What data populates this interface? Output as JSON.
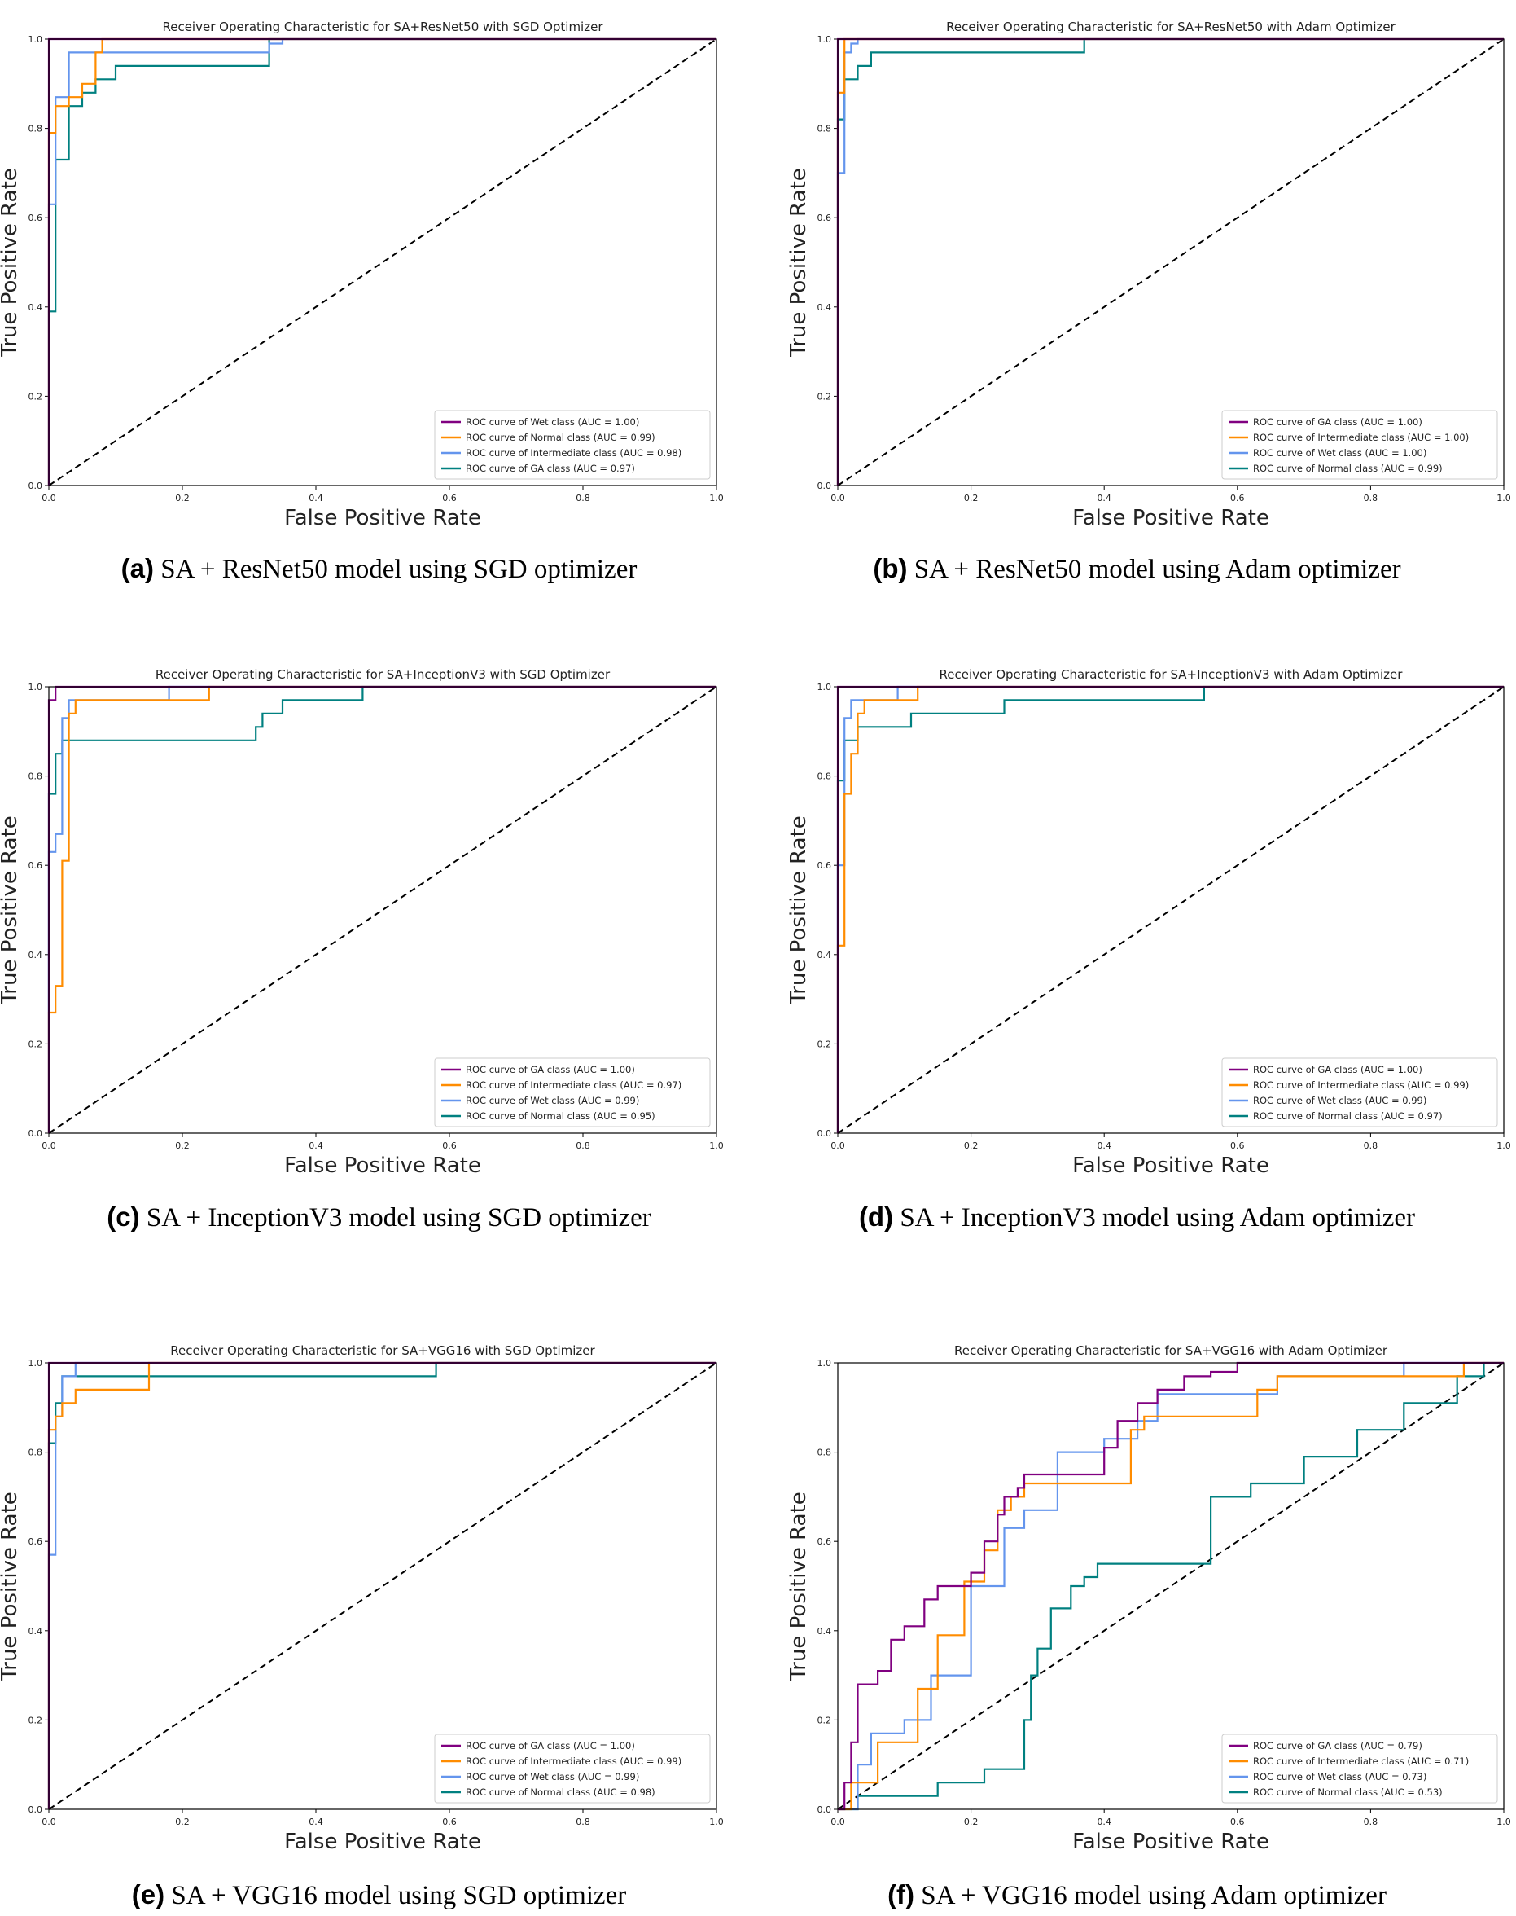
{
  "colors": {
    "GA": "#800080",
    "Wet": "#800080",
    "Normal": "#ff8c00",
    "Intermediate": "#6495ed",
    "GA_teal": "#008080",
    "orange": "#ff8c00",
    "purple": "#800080",
    "blue": "#6495ed",
    "teal": "#008080",
    "diagonal": "#000000"
  },
  "chart_data": [
    {
      "type": "line",
      "title": "Receiver Operating Characteristic for SA+ResNet50 with SGD Optimizer",
      "xlabel": "False Positive Rate",
      "ylabel": "True Positive Rate",
      "xlim": [
        0,
        1
      ],
      "ylim": [
        0,
        1
      ],
      "xticks": [
        "0.0",
        "0.2",
        "0.4",
        "0.6",
        "0.8",
        "1.0"
      ],
      "yticks": [
        "0.0",
        "0.2",
        "0.4",
        "0.6",
        "0.8",
        "1.0"
      ],
      "legend_position": "lower-right",
      "caption_letter": "(a)",
      "caption_text": "SA + ResNet50 model using SGD optimizer",
      "series": [
        {
          "name": "ROC curve of Wet class (AUC = 1.00)",
          "color": "#800080",
          "x": [
            0,
            0,
            1
          ],
          "y": [
            0,
            1,
            1
          ]
        },
        {
          "name": "ROC curve of Normal class (AUC = 0.99)",
          "color": "#ff8c00",
          "x": [
            0,
            0,
            0.01,
            0.01,
            0.03,
            0.03,
            0.05,
            0.05,
            0.07,
            0.07,
            0.08,
            0.08,
            1
          ],
          "y": [
            0,
            0.79,
            0.79,
            0.85,
            0.85,
            0.87,
            0.87,
            0.9,
            0.9,
            0.97,
            0.97,
            1,
            1
          ]
        },
        {
          "name": "ROC curve of Intermediate class (AUC = 0.98)",
          "color": "#6495ed",
          "x": [
            0,
            0,
            0.01,
            0.01,
            0.03,
            0.03,
            0.33,
            0.33,
            0.35,
            0.35,
            1
          ],
          "y": [
            0,
            0.63,
            0.63,
            0.87,
            0.87,
            0.97,
            0.97,
            0.99,
            0.99,
            1,
            1
          ]
        },
        {
          "name": "ROC curve of GA class (AUC = 0.97)",
          "color": "#008080",
          "x": [
            0,
            0,
            0.01,
            0.01,
            0.03,
            0.03,
            0.05,
            0.05,
            0.07,
            0.07,
            0.1,
            0.1,
            0.33,
            0.33,
            1
          ],
          "y": [
            0,
            0.39,
            0.39,
            0.73,
            0.73,
            0.85,
            0.85,
            0.88,
            0.88,
            0.91,
            0.91,
            0.94,
            0.94,
            1,
            1
          ]
        }
      ]
    },
    {
      "type": "line",
      "title": "Receiver Operating Characteristic for SA+ResNet50 with Adam Optimizer",
      "xlabel": "False Positive Rate",
      "ylabel": "True Positive Rate",
      "xlim": [
        0,
        1
      ],
      "ylim": [
        0,
        1
      ],
      "xticks": [
        "0.0",
        "0.2",
        "0.4",
        "0.6",
        "0.8",
        "1.0"
      ],
      "yticks": [
        "0.0",
        "0.2",
        "0.4",
        "0.6",
        "0.8",
        "1.0"
      ],
      "legend_position": "lower-right",
      "caption_letter": "(b)",
      "caption_text": "SA + ResNet50 model using Adam optimizer",
      "series": [
        {
          "name": "ROC curve of GA class (AUC = 1.00)",
          "color": "#800080",
          "x": [
            0,
            0,
            1
          ],
          "y": [
            0,
            1,
            1
          ]
        },
        {
          "name": "ROC curve of Intermediate class (AUC = 1.00)",
          "color": "#ff8c00",
          "x": [
            0,
            0,
            0.01,
            0.01,
            1
          ],
          "y": [
            0,
            0.88,
            0.88,
            1,
            1
          ]
        },
        {
          "name": "ROC curve of Wet class (AUC = 1.00)",
          "color": "#6495ed",
          "x": [
            0,
            0,
            0.01,
            0.01,
            0.02,
            0.02,
            0.03,
            0.03,
            1
          ],
          "y": [
            0,
            0.7,
            0.7,
            0.97,
            0.97,
            0.99,
            0.99,
            1,
            1
          ]
        },
        {
          "name": "ROC curve of Normal class (AUC = 0.99)",
          "color": "#008080",
          "x": [
            0,
            0,
            0.01,
            0.01,
            0.03,
            0.03,
            0.05,
            0.05,
            0.37,
            0.37,
            1
          ],
          "y": [
            0,
            0.82,
            0.82,
            0.91,
            0.91,
            0.94,
            0.94,
            0.97,
            0.97,
            1,
            1
          ]
        }
      ]
    },
    {
      "type": "line",
      "title": "Receiver Operating Characteristic for SA+InceptionV3 with SGD Optimizer",
      "xlabel": "False Positive Rate",
      "ylabel": "True Positive Rate",
      "xlim": [
        0,
        1
      ],
      "ylim": [
        0,
        1
      ],
      "xticks": [
        "0.0",
        "0.2",
        "0.4",
        "0.6",
        "0.8",
        "1.0"
      ],
      "yticks": [
        "0.0",
        "0.2",
        "0.4",
        "0.6",
        "0.8",
        "1.0"
      ],
      "legend_position": "lower-right",
      "caption_letter": "(c)",
      "caption_text": "SA + InceptionV3 model using SGD optimizer",
      "series": [
        {
          "name": "ROC curve of GA class (AUC = 1.00)",
          "color": "#800080",
          "x": [
            0,
            0,
            0.01,
            0.01,
            1
          ],
          "y": [
            0,
            0.97,
            0.97,
            1,
            1
          ]
        },
        {
          "name": "ROC curve of Intermediate class (AUC = 0.97)",
          "color": "#ff8c00",
          "x": [
            0,
            0,
            0.01,
            0.01,
            0.02,
            0.02,
            0.03,
            0.03,
            0.04,
            0.04,
            0.24,
            0.24,
            1
          ],
          "y": [
            0,
            0.27,
            0.27,
            0.33,
            0.33,
            0.61,
            0.61,
            0.94,
            0.94,
            0.97,
            0.97,
            1,
            1
          ]
        },
        {
          "name": "ROC curve of Wet class (AUC = 0.99)",
          "color": "#6495ed",
          "x": [
            0,
            0,
            0.01,
            0.01,
            0.02,
            0.02,
            0.03,
            0.03,
            0.18,
            0.18,
            1
          ],
          "y": [
            0,
            0.63,
            0.63,
            0.67,
            0.67,
            0.93,
            0.93,
            0.97,
            0.97,
            1,
            1
          ]
        },
        {
          "name": "ROC curve of Normal class (AUC = 0.95)",
          "color": "#008080",
          "x": [
            0,
            0,
            0.01,
            0.01,
            0.02,
            0.02,
            0.31,
            0.31,
            0.32,
            0.32,
            0.35,
            0.35,
            0.47,
            0.47,
            1
          ],
          "y": [
            0,
            0.76,
            0.76,
            0.85,
            0.85,
            0.88,
            0.88,
            0.91,
            0.91,
            0.94,
            0.94,
            0.97,
            0.97,
            1,
            1
          ]
        }
      ]
    },
    {
      "type": "line",
      "title": "Receiver Operating Characteristic for SA+InceptionV3 with Adam Optimizer",
      "xlabel": "False Positive Rate",
      "ylabel": "True Positive Rate",
      "xlim": [
        0,
        1
      ],
      "ylim": [
        0,
        1
      ],
      "xticks": [
        "0.0",
        "0.2",
        "0.4",
        "0.6",
        "0.8",
        "1.0"
      ],
      "yticks": [
        "0.0",
        "0.2",
        "0.4",
        "0.6",
        "0.8",
        "1.0"
      ],
      "legend_position": "lower-right",
      "caption_letter": "(d)",
      "caption_text": "SA + InceptionV3 model using Adam optimizer",
      "series": [
        {
          "name": "ROC curve of GA class (AUC = 1.00)",
          "color": "#800080",
          "x": [
            0,
            0,
            0.09,
            0.09,
            1
          ],
          "y": [
            0,
            1,
            1,
            1,
            1
          ]
        },
        {
          "name": "ROC curve of Intermediate class (AUC = 0.99)",
          "color": "#ff8c00",
          "x": [
            0,
            0,
            0.01,
            0.01,
            0.02,
            0.02,
            0.03,
            0.03,
            0.04,
            0.04,
            0.12,
            0.12,
            1
          ],
          "y": [
            0,
            0.42,
            0.42,
            0.76,
            0.76,
            0.85,
            0.85,
            0.94,
            0.94,
            0.97,
            0.97,
            1,
            1
          ]
        },
        {
          "name": "ROC curve of Wet class (AUC = 0.99)",
          "color": "#6495ed",
          "x": [
            0,
            0,
            0.01,
            0.01,
            0.02,
            0.02,
            0.09,
            0.09,
            1
          ],
          "y": [
            0,
            0.6,
            0.6,
            0.93,
            0.93,
            0.97,
            0.97,
            1,
            1
          ]
        },
        {
          "name": "ROC curve of Normal class (AUC = 0.97)",
          "color": "#008080",
          "x": [
            0,
            0,
            0.01,
            0.01,
            0.03,
            0.03,
            0.11,
            0.11,
            0.25,
            0.25,
            0.55,
            0.55,
            1
          ],
          "y": [
            0,
            0.79,
            0.79,
            0.88,
            0.88,
            0.91,
            0.91,
            0.94,
            0.94,
            0.97,
            0.97,
            1,
            1
          ]
        }
      ]
    },
    {
      "type": "line",
      "title": "Receiver Operating Characteristic for SA+VGG16 with SGD Optimizer",
      "xlabel": "False Positive Rate",
      "ylabel": "True Positive Rate",
      "xlim": [
        0,
        1
      ],
      "ylim": [
        0,
        1
      ],
      "xticks": [
        "0.0",
        "0.2",
        "0.4",
        "0.6",
        "0.8",
        "1.0"
      ],
      "yticks": [
        "0.0",
        "0.2",
        "0.4",
        "0.6",
        "0.8",
        "1.0"
      ],
      "legend_position": "lower-right",
      "caption_letter": "(e)",
      "caption_text": "SA + VGG16 model using SGD optimizer",
      "series": [
        {
          "name": "ROC curve of GA class (AUC = 1.00)",
          "color": "#800080",
          "x": [
            0,
            0,
            1
          ],
          "y": [
            0,
            1,
            1
          ]
        },
        {
          "name": "ROC curve of Intermediate class (AUC = 0.99)",
          "color": "#ff8c00",
          "x": [
            0,
            0,
            0.01,
            0.01,
            0.02,
            0.02,
            0.04,
            0.04,
            0.15,
            0.15,
            1
          ],
          "y": [
            0,
            0.85,
            0.85,
            0.88,
            0.88,
            0.91,
            0.91,
            0.94,
            0.94,
            1,
            1
          ]
        },
        {
          "name": "ROC curve of Wet class (AUC = 0.99)",
          "color": "#6495ed",
          "x": [
            0,
            0,
            0.01,
            0.01,
            0.02,
            0.02,
            0.04,
            0.04,
            1
          ],
          "y": [
            0,
            0.57,
            0.57,
            0.88,
            0.88,
            0.97,
            0.97,
            1,
            1
          ]
        },
        {
          "name": "ROC curve of Normal class (AUC = 0.98)",
          "color": "#008080",
          "x": [
            0,
            0,
            0.01,
            0.01,
            0.02,
            0.02,
            0.04,
            0.04,
            0.58,
            0.58,
            1
          ],
          "y": [
            0,
            0.82,
            0.82,
            0.91,
            0.91,
            0.97,
            0.97,
            0.97,
            0.97,
            1,
            1
          ]
        }
      ]
    },
    {
      "type": "line",
      "title": "Receiver Operating Characteristic for SA+VGG16 with Adam Optimizer",
      "xlabel": "False Positive Rate",
      "ylabel": "True Positive Rate",
      "xlim": [
        0,
        1
      ],
      "ylim": [
        0,
        1
      ],
      "xticks": [
        "0.0",
        "0.2",
        "0.4",
        "0.6",
        "0.8",
        "1.0"
      ],
      "yticks": [
        "0.0",
        "0.2",
        "0.4",
        "0.6",
        "0.8",
        "1.0"
      ],
      "legend_position": "lower-right",
      "caption_letter": "(f)",
      "caption_text": "SA + VGG16 model using Adam optimizer",
      "series": [
        {
          "name": "ROC curve of GA class (AUC = 0.79)",
          "color": "#800080",
          "x": [
            0,
            0.01,
            0.01,
            0.02,
            0.02,
            0.03,
            0.03,
            0.06,
            0.06,
            0.08,
            0.08,
            0.1,
            0.1,
            0.13,
            0.13,
            0.15,
            0.15,
            0.2,
            0.2,
            0.22,
            0.22,
            0.24,
            0.24,
            0.25,
            0.25,
            0.27,
            0.27,
            0.28,
            0.28,
            0.4,
            0.4,
            0.42,
            0.42,
            0.45,
            0.45,
            0.48,
            0.48,
            0.52,
            0.52,
            0.56,
            0.56,
            0.6,
            0.6,
            0.65,
            0.65,
            1
          ],
          "y": [
            0,
            0,
            0.06,
            0.06,
            0.15,
            0.15,
            0.28,
            0.28,
            0.31,
            0.31,
            0.38,
            0.38,
            0.41,
            0.41,
            0.47,
            0.47,
            0.5,
            0.5,
            0.53,
            0.53,
            0.6,
            0.6,
            0.66,
            0.66,
            0.7,
            0.7,
            0.72,
            0.72,
            0.75,
            0.75,
            0.81,
            0.81,
            0.87,
            0.87,
            0.91,
            0.91,
            0.94,
            0.94,
            0.97,
            0.97,
            0.98,
            0.98,
            1,
            1,
            1,
            1
          ]
        },
        {
          "name": "ROC curve of Intermediate class (AUC = 0.71)",
          "color": "#ff8c00",
          "x": [
            0,
            0.02,
            0.02,
            0.06,
            0.06,
            0.12,
            0.12,
            0.15,
            0.15,
            0.19,
            0.19,
            0.22,
            0.22,
            0.24,
            0.24,
            0.26,
            0.26,
            0.28,
            0.28,
            0.31,
            0.31,
            0.44,
            0.44,
            0.46,
            0.46,
            0.63,
            0.63,
            0.66,
            0.66,
            0.94,
            0.94,
            1
          ],
          "y": [
            0,
            0,
            0.06,
            0.06,
            0.15,
            0.15,
            0.27,
            0.27,
            0.39,
            0.39,
            0.51,
            0.51,
            0.58,
            0.58,
            0.67,
            0.67,
            0.7,
            0.7,
            0.73,
            0.73,
            0.73,
            0.73,
            0.85,
            0.85,
            0.88,
            0.88,
            0.94,
            0.94,
            0.97,
            0.97,
            1,
            1
          ]
        },
        {
          "name": "ROC curve of Wet class (AUC = 0.73)",
          "color": "#6495ed",
          "x": [
            0,
            0.03,
            0.03,
            0.05,
            0.05,
            0.1,
            0.1,
            0.14,
            0.14,
            0.2,
            0.2,
            0.25,
            0.25,
            0.28,
            0.28,
            0.33,
            0.33,
            0.4,
            0.4,
            0.45,
            0.45,
            0.48,
            0.48,
            0.66,
            0.66,
            0.85,
            0.85,
            0.97,
            0.97,
            1
          ],
          "y": [
            0,
            0,
            0.1,
            0.1,
            0.17,
            0.17,
            0.2,
            0.2,
            0.3,
            0.3,
            0.5,
            0.5,
            0.63,
            0.63,
            0.67,
            0.67,
            0.8,
            0.8,
            0.83,
            0.83,
            0.87,
            0.87,
            0.93,
            0.93,
            0.97,
            0.97,
            1,
            1,
            1,
            1
          ]
        },
        {
          "name": "ROC curve of Normal class (AUC = 0.53)",
          "color": "#008080",
          "x": [
            0,
            0.03,
            0.03,
            0.15,
            0.15,
            0.22,
            0.22,
            0.28,
            0.28,
            0.29,
            0.29,
            0.3,
            0.3,
            0.32,
            0.32,
            0.35,
            0.35,
            0.37,
            0.37,
            0.39,
            0.39,
            0.5,
            0.5,
            0.56,
            0.56,
            0.62,
            0.62,
            0.7,
            0.7,
            0.78,
            0.78,
            0.85,
            0.85,
            0.93,
            0.93,
            0.97,
            0.97,
            1
          ],
          "y": [
            0,
            0,
            0.03,
            0.03,
            0.06,
            0.06,
            0.09,
            0.09,
            0.2,
            0.2,
            0.3,
            0.3,
            0.36,
            0.36,
            0.45,
            0.45,
            0.5,
            0.5,
            0.52,
            0.52,
            0.55,
            0.55,
            0.55,
            0.55,
            0.7,
            0.7,
            0.73,
            0.73,
            0.79,
            0.79,
            0.85,
            0.85,
            0.91,
            0.91,
            0.97,
            0.97,
            1,
            1
          ]
        }
      ]
    }
  ]
}
